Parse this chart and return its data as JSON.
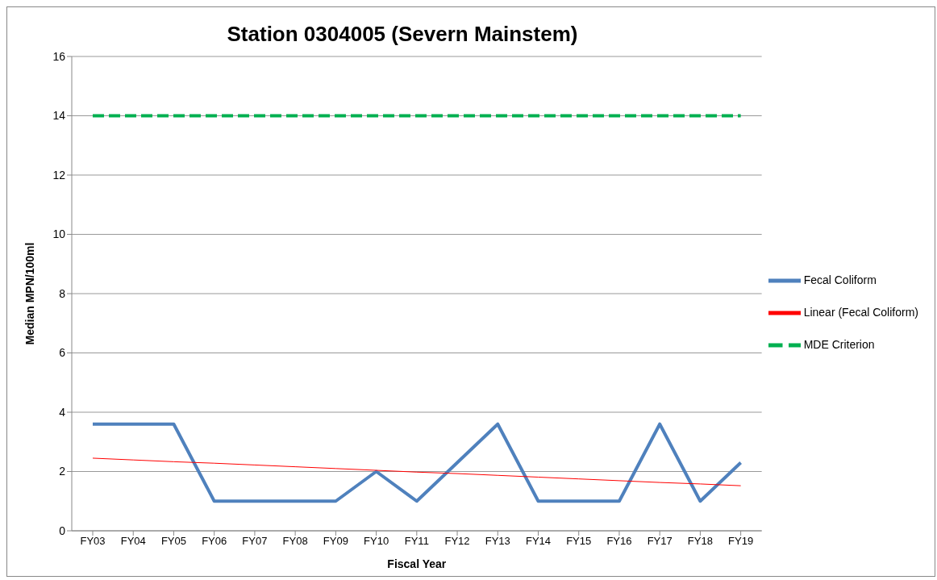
{
  "chart_data": {
    "type": "line",
    "title": "Station 0304005 (Severn Mainstem)",
    "xlabel": "Fiscal Year",
    "ylabel": "Median MPN/100ml",
    "categories": [
      "FY03",
      "FY04",
      "FY05",
      "FY06",
      "FY07",
      "FY08",
      "FY09",
      "FY10",
      "FY11",
      "FY12",
      "FY13",
      "FY14",
      "FY15",
      "FY16",
      "FY17",
      "FY18",
      "FY19"
    ],
    "series": [
      {
        "name": "Fecal Coliform",
        "color": "#4f81bd",
        "line_style": "solid",
        "values": [
          3.6,
          3.6,
          3.6,
          1,
          1,
          1,
          1,
          2,
          1,
          2.3,
          3.6,
          1,
          1,
          1,
          3.6,
          1,
          2.3
        ]
      },
      {
        "name": "MDE Criterion",
        "color": "#00b050",
        "line_style": "dashed",
        "values": [
          14,
          14,
          14,
          14,
          14,
          14,
          14,
          14,
          14,
          14,
          14,
          14,
          14,
          14,
          14,
          14,
          14
        ]
      },
      {
        "name": "Linear (Fecal Coliform)",
        "color": "#ff0000",
        "line_style": "solid",
        "values": [
          2.45,
          2.39,
          2.33,
          2.28,
          2.22,
          2.16,
          2.1,
          2.04,
          1.98,
          1.93,
          1.87,
          1.81,
          1.75,
          1.69,
          1.63,
          1.58,
          1.52
        ]
      }
    ],
    "ylim": [
      0,
      16
    ],
    "yticks": [
      0,
      2,
      4,
      6,
      8,
      10,
      12,
      14,
      16
    ],
    "grid": "y",
    "legend": "right",
    "marker": "none"
  }
}
